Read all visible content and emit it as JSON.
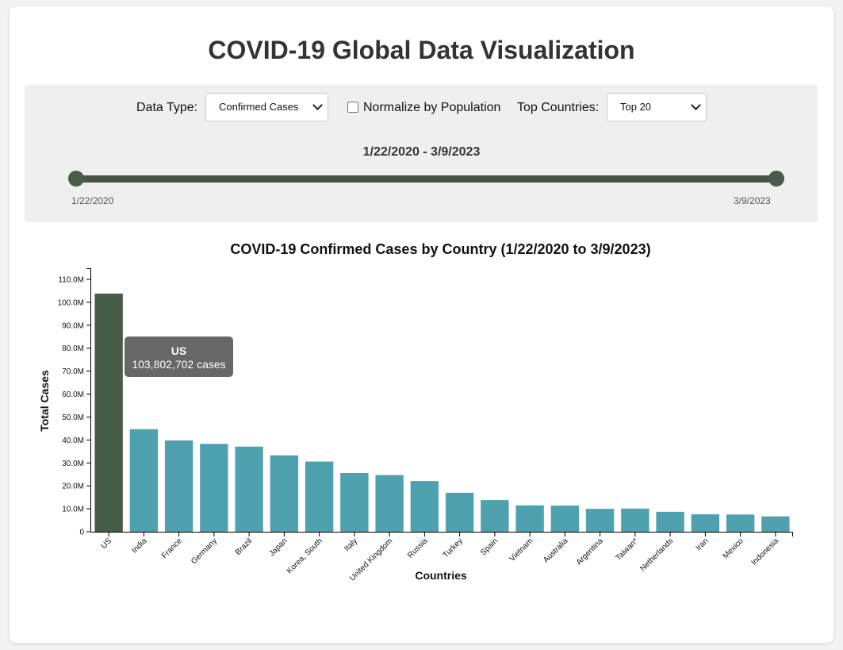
{
  "header": {
    "title": "COVID-19 Global Data Visualization"
  },
  "controls": {
    "data_type_label": "Data Type:",
    "data_type_value": "Confirmed Cases",
    "normalize_label": "Normalize by Population",
    "normalize_checked": false,
    "top_countries_label": "Top Countries:",
    "top_countries_value": "Top 20",
    "date_range_label": "1/22/2020 - 3/9/2023",
    "date_start": "1/22/2020",
    "date_end": "3/9/2023"
  },
  "tooltip": {
    "country": "US",
    "text": "103,802,702 cases"
  },
  "colors": {
    "bar": "#4fa1b0",
    "bar_highlight": "#475c47"
  },
  "chart_data": {
    "type": "bar",
    "title": "COVID-19 Confirmed Cases by Country (1/22/2020 to 3/9/2023)",
    "xlabel": "Countries",
    "ylabel": "Total Cases",
    "ylim": [
      0,
      110000000
    ],
    "yticks": [
      "0",
      "10.0M",
      "20.0M",
      "30.0M",
      "40.0M",
      "50.0M",
      "60.0M",
      "70.0M",
      "80.0M",
      "90.0M",
      "100.0M",
      "110.0M"
    ],
    "categories": [
      "US",
      "India",
      "France",
      "Germany",
      "Brazil",
      "Japan",
      "Korea, South",
      "Italy",
      "United Kingdom",
      "Russia",
      "Turkey",
      "Spain",
      "Vietnam",
      "Australia",
      "Argentina",
      "Taiwan*",
      "Netherlands",
      "Iran",
      "Mexico",
      "Indonesia"
    ],
    "values": [
      103802702,
      44700000,
      39800000,
      38300000,
      37100000,
      33300000,
      30600000,
      25600000,
      24700000,
      22100000,
      17000000,
      13800000,
      11500000,
      11400000,
      10000000,
      10100000,
      8700000,
      7600000,
      7500000,
      6700000
    ],
    "highlighted": "US"
  }
}
